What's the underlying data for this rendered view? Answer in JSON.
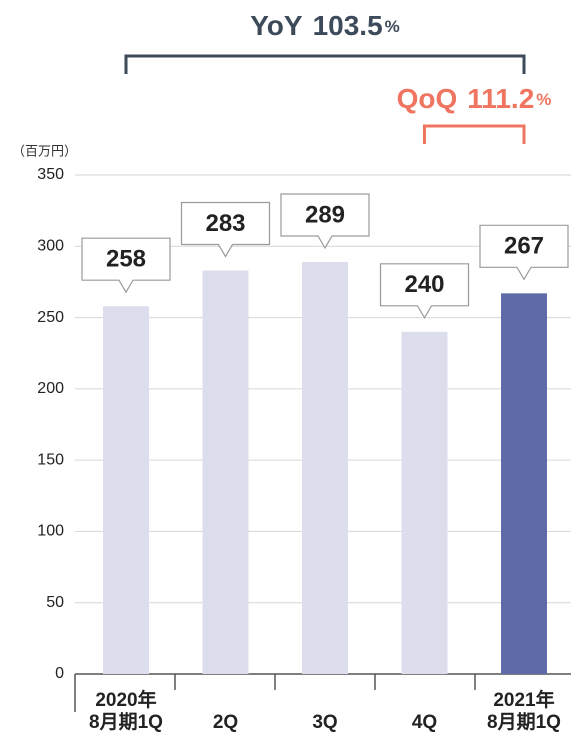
{
  "chart_data": {
    "type": "bar",
    "y_axis_label": "（百万円）",
    "categories": [
      "2020年\n8月期1Q",
      "2Q",
      "3Q",
      "4Q",
      "2021年\n8月期1Q"
    ],
    "values": [
      258,
      283,
      289,
      240,
      267
    ],
    "colors": [
      "#dcdeee",
      "#dcdeee",
      "#dcdeee",
      "#dcdeee",
      "#5f6aa8"
    ],
    "ylim": [
      0,
      350
    ],
    "yticks": [
      0,
      50,
      100,
      150,
      200,
      250,
      300,
      350
    ],
    "grid": true,
    "annotations": [
      {
        "label": "YoY",
        "value": "103.5",
        "unit": "%",
        "color": "#3d4a5a",
        "from": 0,
        "to": 4
      },
      {
        "label": "QoQ",
        "value": "111.2",
        "unit": "%",
        "color": "#ef7561",
        "from": 3,
        "to": 4
      }
    ]
  }
}
